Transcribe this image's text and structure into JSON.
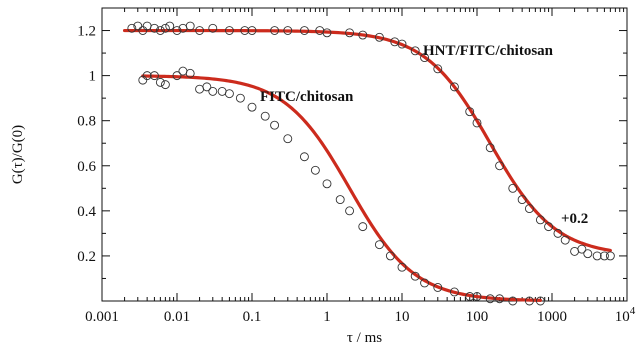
{
  "chart_data": {
    "type": "scatter",
    "xlabel": "τ / ms",
    "ylabel": "G(τ)/G(0)",
    "xscale": "log",
    "xlim": [
      0.001,
      10000
    ],
    "ylim": [
      0.0,
      1.3
    ],
    "x_ticks": [
      {
        "value": 0.001,
        "label": "0.001"
      },
      {
        "value": 0.01,
        "label": "0.01"
      },
      {
        "value": 0.1,
        "label": "0.1"
      },
      {
        "value": 1,
        "label": "1"
      },
      {
        "value": 10,
        "label": "10"
      },
      {
        "value": 100,
        "label": "100"
      },
      {
        "value": 1000,
        "label": "1000"
      }
    ],
    "x_tick_last": {
      "value": 10000,
      "base": "10",
      "exp": "4"
    },
    "y_ticks": [
      {
        "value": 0.2,
        "label": "0.2"
      },
      {
        "value": 0.4,
        "label": "0.4"
      },
      {
        "value": 0.6,
        "label": "0.6"
      },
      {
        "value": 0.8,
        "label": "0.8"
      },
      {
        "value": 1.0,
        "label": "1"
      },
      {
        "value": 1.2,
        "label": "1.2"
      }
    ],
    "grid": false,
    "marker": {
      "style": "open-circle",
      "color": "#333333"
    },
    "fit_color": "#cc2b1d",
    "series": [
      {
        "name": "HNT/FITC/chitosan",
        "fit_label": "+0.2",
        "x_range": [
          0.002,
          6000
        ],
        "tau_D_ms": 150,
        "offset": 0.2,
        "points": [
          [
            0.0025,
            1.21
          ],
          [
            0.003,
            1.22
          ],
          [
            0.0035,
            1.2
          ],
          [
            0.004,
            1.22
          ],
          [
            0.005,
            1.21
          ],
          [
            0.006,
            1.2
          ],
          [
            0.007,
            1.21
          ],
          [
            0.008,
            1.22
          ],
          [
            0.01,
            1.2
          ],
          [
            0.012,
            1.21
          ],
          [
            0.015,
            1.22
          ],
          [
            0.02,
            1.2
          ],
          [
            0.03,
            1.21
          ],
          [
            0.05,
            1.2
          ],
          [
            0.08,
            1.2
          ],
          [
            0.1,
            1.2
          ],
          [
            0.2,
            1.2
          ],
          [
            0.3,
            1.2
          ],
          [
            0.5,
            1.2
          ],
          [
            0.8,
            1.2
          ],
          [
            1,
            1.19
          ],
          [
            2,
            1.19
          ],
          [
            3,
            1.18
          ],
          [
            5,
            1.17
          ],
          [
            8,
            1.15
          ],
          [
            10,
            1.14
          ],
          [
            15,
            1.11
          ],
          [
            20,
            1.08
          ],
          [
            30,
            1.03
          ],
          [
            50,
            0.95
          ],
          [
            80,
            0.84
          ],
          [
            100,
            0.79
          ],
          [
            150,
            0.68
          ],
          [
            200,
            0.6
          ],
          [
            300,
            0.5
          ],
          [
            400,
            0.45
          ],
          [
            500,
            0.41
          ],
          [
            700,
            0.36
          ],
          [
            900,
            0.33
          ],
          [
            1200,
            0.3
          ],
          [
            1500,
            0.27
          ],
          [
            2000,
            0.22
          ],
          [
            2500,
            0.23
          ],
          [
            3000,
            0.21
          ],
          [
            4000,
            0.2
          ],
          [
            5000,
            0.2
          ],
          [
            6000,
            0.2
          ]
        ]
      },
      {
        "name": "FITC/chitosan",
        "x_range": [
          0.0035,
          700
        ],
        "tau_D_ms": 2,
        "offset": 0,
        "points": [
          [
            0.0035,
            0.98
          ],
          [
            0.004,
            1.0
          ],
          [
            0.005,
            1.0
          ],
          [
            0.006,
            0.97
          ],
          [
            0.007,
            0.96
          ],
          [
            0.01,
            1.0
          ],
          [
            0.012,
            1.02
          ],
          [
            0.015,
            1.01
          ],
          [
            0.02,
            0.94
          ],
          [
            0.025,
            0.95
          ],
          [
            0.03,
            0.93
          ],
          [
            0.04,
            0.93
          ],
          [
            0.05,
            0.92
          ],
          [
            0.07,
            0.9
          ],
          [
            0.1,
            0.86
          ],
          [
            0.15,
            0.82
          ],
          [
            0.2,
            0.78
          ],
          [
            0.3,
            0.72
          ],
          [
            0.5,
            0.64
          ],
          [
            0.7,
            0.58
          ],
          [
            1,
            0.52
          ],
          [
            1.5,
            0.45
          ],
          [
            2,
            0.4
          ],
          [
            3,
            0.33
          ],
          [
            5,
            0.25
          ],
          [
            7,
            0.2
          ],
          [
            10,
            0.15
          ],
          [
            15,
            0.11
          ],
          [
            20,
            0.08
          ],
          [
            30,
            0.06
          ],
          [
            50,
            0.04
          ],
          [
            80,
            0.02
          ],
          [
            100,
            0.02
          ],
          [
            150,
            0.01
          ],
          [
            200,
            0.01
          ],
          [
            300,
            0.0
          ],
          [
            500,
            0.0
          ],
          [
            700,
            0.0
          ]
        ]
      }
    ]
  }
}
